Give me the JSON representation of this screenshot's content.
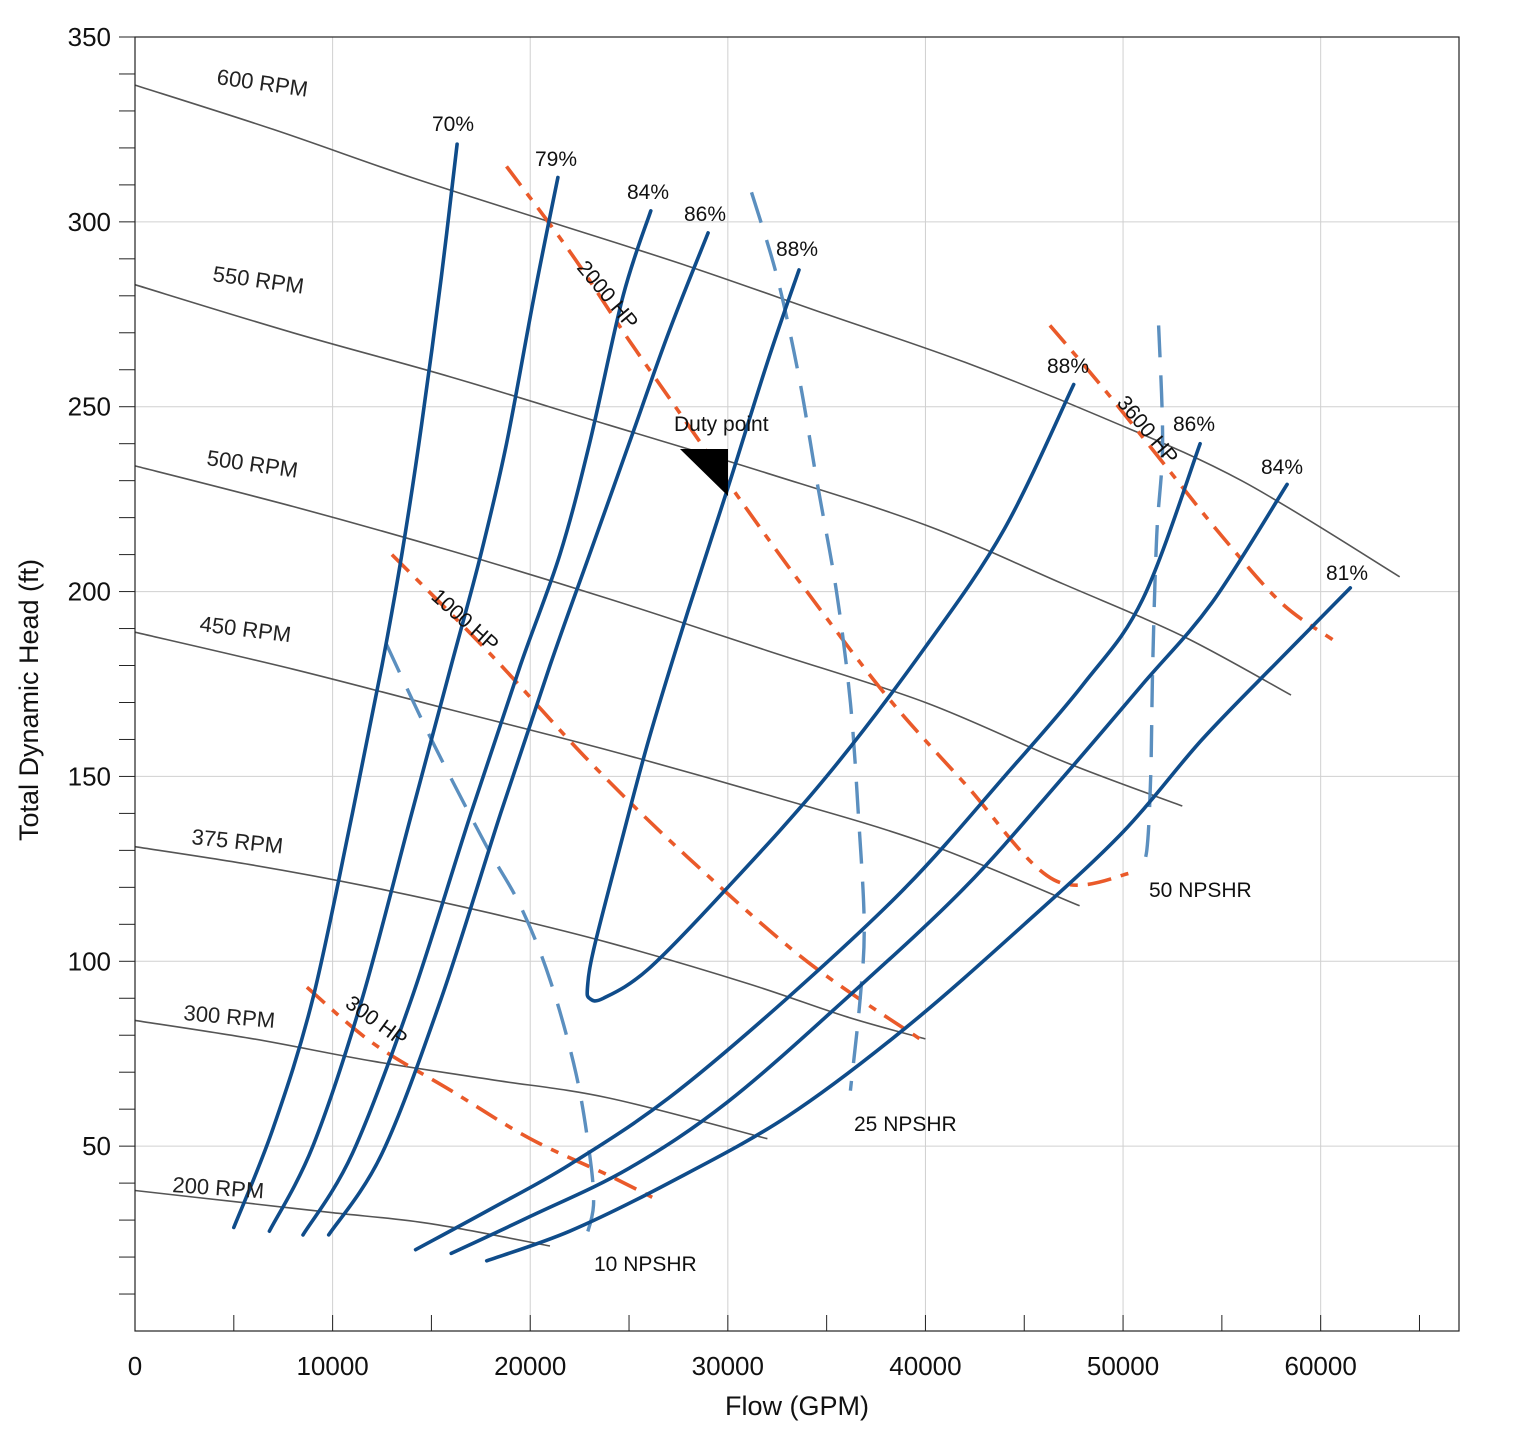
{
  "chart_data": {
    "type": "line",
    "title": "",
    "xlabel": "Flow (GPM)",
    "ylabel": "Total Dynamic Head (ft)",
    "xlim": [
      0,
      67000
    ],
    "ylim": [
      0,
      350
    ],
    "grid": true,
    "x_ticks": [
      0,
      10000,
      20000,
      30000,
      40000,
      50000,
      60000
    ],
    "y_ticks": [
      50,
      100,
      150,
      200,
      250,
      300,
      350
    ],
    "x_tick_labels": [
      "0",
      "10000",
      "20000",
      "30000",
      "40000",
      "50000",
      "60000"
    ],
    "y_tick_labels": [
      "50",
      "100",
      "150",
      "200",
      "250",
      "300",
      "350"
    ],
    "speed_curves": [
      {
        "name": "600 RPM",
        "points": [
          [
            0,
            337
          ],
          [
            7000,
            325
          ],
          [
            14000,
            312
          ],
          [
            21000,
            300
          ],
          [
            28000,
            288
          ],
          [
            35000,
            275
          ],
          [
            42000,
            262
          ],
          [
            49000,
            247
          ],
          [
            56000,
            230
          ],
          [
            64000,
            204
          ]
        ]
      },
      {
        "name": "550 RPM",
        "points": [
          [
            0,
            283
          ],
          [
            8000,
            270
          ],
          [
            16000,
            258
          ],
          [
            24000,
            245
          ],
          [
            32000,
            232
          ],
          [
            40000,
            218
          ],
          [
            47000,
            202
          ],
          [
            53000,
            188
          ],
          [
            58500,
            172
          ]
        ]
      },
      {
        "name": "500 RPM",
        "points": [
          [
            0,
            234
          ],
          [
            8000,
            223
          ],
          [
            16000,
            211
          ],
          [
            24000,
            198
          ],
          [
            32000,
            184
          ],
          [
            40000,
            170
          ],
          [
            47000,
            154
          ],
          [
            53000,
            142
          ]
        ]
      },
      {
        "name": "450 RPM",
        "points": [
          [
            0,
            189
          ],
          [
            8000,
            179
          ],
          [
            16000,
            168
          ],
          [
            24000,
            157
          ],
          [
            32000,
            145
          ],
          [
            40000,
            132
          ],
          [
            47800,
            115
          ]
        ]
      },
      {
        "name": "375 RPM",
        "points": [
          [
            0,
            131
          ],
          [
            6000,
            126
          ],
          [
            12000,
            120
          ],
          [
            18000,
            113
          ],
          [
            24000,
            105
          ],
          [
            31000,
            94
          ],
          [
            36000,
            85
          ],
          [
            40000,
            79
          ]
        ]
      },
      {
        "name": "300 RPM",
        "points": [
          [
            0,
            84
          ],
          [
            6000,
            79
          ],
          [
            12000,
            73
          ],
          [
            18000,
            68
          ],
          [
            24000,
            63
          ],
          [
            32000,
            52
          ]
        ]
      },
      {
        "name": "200 RPM",
        "points": [
          [
            0,
            38
          ],
          [
            5000,
            35
          ],
          [
            10000,
            32
          ],
          [
            15000,
            29
          ],
          [
            21000,
            23
          ]
        ]
      }
    ],
    "efficiency_curves": [
      {
        "name": "70%",
        "points": [
          [
            5000,
            28
          ],
          [
            7000,
            55
          ],
          [
            9000,
            90
          ],
          [
            11000,
            140
          ],
          [
            12500,
            180
          ],
          [
            13500,
            210
          ],
          [
            14500,
            245
          ],
          [
            15500,
            285
          ],
          [
            16300,
            321
          ]
        ]
      },
      {
        "name": "79%",
        "points": [
          [
            6800,
            27
          ],
          [
            9000,
            50
          ],
          [
            11500,
            90
          ],
          [
            14000,
            140
          ],
          [
            16000,
            180
          ],
          [
            17500,
            210
          ],
          [
            18800,
            240
          ],
          [
            20200,
            280
          ],
          [
            21400,
            312
          ]
        ]
      },
      {
        "name": "84%",
        "points": [
          [
            8500,
            26
          ],
          [
            11000,
            48
          ],
          [
            14000,
            90
          ],
          [
            17000,
            140
          ],
          [
            19500,
            180
          ],
          [
            21500,
            210
          ],
          [
            23000,
            240
          ],
          [
            24700,
            280
          ],
          [
            26100,
            303
          ]
        ]
      },
      {
        "name": "86% (left)",
        "points": [
          [
            9800,
            26
          ],
          [
            12500,
            48
          ],
          [
            15500,
            90
          ],
          [
            18500,
            140
          ],
          [
            21000,
            180
          ],
          [
            23000,
            210
          ],
          [
            25000,
            240
          ],
          [
            27000,
            270
          ],
          [
            29000,
            297
          ]
        ]
      },
      {
        "name": "88% (loop)",
        "points": [
          [
            33600,
            287
          ],
          [
            32000,
            262
          ],
          [
            30000,
            228
          ],
          [
            28000,
            195
          ],
          [
            26000,
            160
          ],
          [
            24500,
            130
          ],
          [
            23200,
            103
          ],
          [
            22900,
            93
          ],
          [
            23000,
            90
          ],
          [
            23700,
            90
          ],
          [
            26000,
            98
          ],
          [
            30000,
            120
          ],
          [
            35000,
            150
          ],
          [
            40000,
            185
          ],
          [
            44000,
            217
          ],
          [
            47500,
            256
          ]
        ]
      },
      {
        "name": "86% (right)",
        "points": [
          [
            14200,
            22
          ],
          [
            18000,
            33
          ],
          [
            22000,
            45
          ],
          [
            27000,
            63
          ],
          [
            33000,
            90
          ],
          [
            39000,
            120
          ],
          [
            44000,
            150
          ],
          [
            48000,
            175
          ],
          [
            51000,
            198
          ],
          [
            53900,
            240
          ]
        ]
      },
      {
        "name": "84% (right)",
        "points": [
          [
            16000,
            21
          ],
          [
            20000,
            31
          ],
          [
            25000,
            44
          ],
          [
            30000,
            62
          ],
          [
            36000,
            90
          ],
          [
            42000,
            120
          ],
          [
            47000,
            150
          ],
          [
            51000,
            175
          ],
          [
            54500,
            197
          ],
          [
            58300,
            229
          ]
        ]
      },
      {
        "name": "81%",
        "points": [
          [
            17800,
            19
          ],
          [
            22000,
            27
          ],
          [
            27000,
            40
          ],
          [
            33000,
            58
          ],
          [
            39000,
            82
          ],
          [
            45000,
            110
          ],
          [
            50000,
            135
          ],
          [
            54000,
            160
          ],
          [
            58000,
            182
          ],
          [
            61500,
            201
          ]
        ]
      }
    ],
    "power_curves": [
      {
        "name": "300 HP",
        "points": [
          [
            8700,
            93
          ],
          [
            12000,
            78
          ],
          [
            16000,
            65
          ],
          [
            20000,
            52
          ],
          [
            24000,
            42
          ],
          [
            26600,
            35
          ]
        ]
      },
      {
        "name": "1000 HP",
        "points": [
          [
            13000,
            210
          ],
          [
            18000,
            183
          ],
          [
            23000,
            154
          ],
          [
            28000,
            128
          ],
          [
            34000,
            100
          ],
          [
            40000,
            78
          ]
        ]
      },
      {
        "name": "2000 HP",
        "points": [
          [
            18800,
            315
          ],
          [
            22000,
            292
          ],
          [
            25000,
            268
          ],
          [
            28000,
            245
          ],
          [
            31000,
            222
          ],
          [
            34000,
            200
          ],
          [
            38000,
            172
          ],
          [
            42000,
            148
          ],
          [
            46500,
            122
          ],
          [
            50500,
            124
          ]
        ]
      },
      {
        "name": "3600 HP",
        "points": [
          [
            46300,
            272
          ],
          [
            49000,
            255
          ],
          [
            52000,
            235
          ],
          [
            55000,
            215
          ],
          [
            58000,
            197
          ],
          [
            60600,
            187
          ]
        ]
      }
    ],
    "npsh_curves": [
      {
        "name": "10 NPSHR",
        "points": [
          [
            12700,
            186
          ],
          [
            15000,
            160
          ],
          [
            17700,
            132
          ],
          [
            19500,
            115
          ],
          [
            21000,
            95
          ],
          [
            22300,
            70
          ],
          [
            23000,
            48
          ],
          [
            23200,
            34
          ],
          [
            22800,
            25
          ]
        ]
      },
      {
        "name": "25 NPSHR",
        "points": [
          [
            31200,
            308
          ],
          [
            32500,
            285
          ],
          [
            33600,
            258
          ],
          [
            34500,
            230
          ],
          [
            35500,
            200
          ],
          [
            36200,
            170
          ],
          [
            36600,
            140
          ],
          [
            36900,
            110
          ],
          [
            36700,
            90
          ],
          [
            36200,
            65
          ]
        ]
      },
      {
        "name": "50 NPSHR",
        "points": [
          [
            51800,
            272
          ],
          [
            52000,
            240
          ],
          [
            51700,
            215
          ],
          [
            51500,
            180
          ],
          [
            51400,
            150
          ],
          [
            51200,
            130
          ],
          [
            50800,
            124
          ]
        ]
      }
    ],
    "duty_point": {
      "label": "Duty point",
      "flow": 30000,
      "head": 239
    }
  },
  "labels": {
    "rpm": [
      "600 RPM",
      "550 RPM",
      "500 RPM",
      "450 RPM",
      "375 RPM",
      "300 RPM",
      "200 RPM"
    ],
    "efficiency": [
      "70%",
      "79%",
      "84%",
      "86%",
      "88%",
      "88%",
      "86%",
      "84%",
      "81%"
    ],
    "power": [
      "300 HP",
      "1000 HP",
      "2000 HP",
      "3600 HP"
    ],
    "npsh": [
      "10 NPSHR",
      "25 NPSHR",
      "50 NPSHR"
    ]
  },
  "colors": {
    "speed": "#555555",
    "efficiency": "#0f4c8a",
    "power": "#ea5a2a",
    "npsh": "#5b8fbf",
    "grid": "#d0d0d0"
  }
}
